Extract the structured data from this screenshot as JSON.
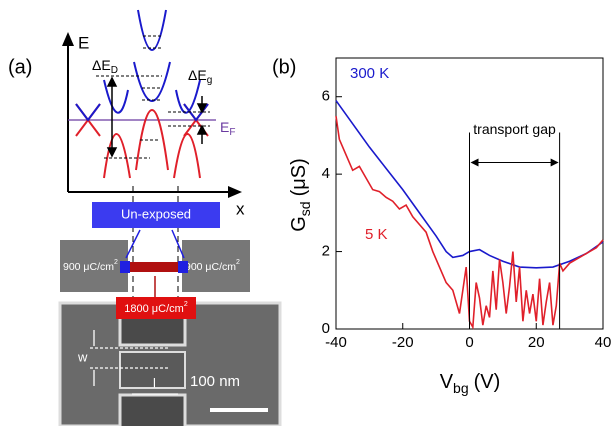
{
  "panel_a": {
    "label": "(a)",
    "e_axis": "E",
    "x_axis": "x",
    "delta_ed": {
      "base": "ΔE",
      "sub": "D"
    },
    "delta_eg": {
      "base": "ΔE",
      "sub": "g"
    },
    "fermi": {
      "base": "E",
      "sub": "F"
    },
    "unexposed": "Un-exposed",
    "dose_left": {
      "base": "900 μC/cm",
      "sup": "2"
    },
    "dose_right": {
      "base": "900 μC/cm",
      "sup": "2"
    },
    "dose_center": {
      "base": "1800 μC/cm",
      "sup": "2"
    },
    "width": "w",
    "length": "l",
    "scale": "100 nm"
  },
  "chart_data": {
    "type": "line",
    "panel_label": "(b)",
    "x_label": {
      "base": "V",
      "sub": "bg",
      "unit": "(V)"
    },
    "y_label": {
      "base": "G",
      "sub": "sd",
      "unit": "(μS)"
    },
    "xlim": [
      -40,
      40
    ],
    "xticks": [
      -40,
      -20,
      0,
      20,
      40
    ],
    "ylim": [
      0,
      7
    ],
    "yticks": [
      0,
      2,
      4,
      6
    ],
    "gap": {
      "label": "transport gap",
      "range": [
        0,
        27
      ],
      "level": 4.3
    },
    "series": [
      {
        "name": "300 K",
        "color": "#1a1acc",
        "x": [
          -40,
          -35,
          -30,
          -25,
          -20,
          -15,
          -10,
          -7,
          -5,
          -2,
          0,
          3,
          6,
          10,
          15,
          20,
          25,
          30,
          35,
          40
        ],
        "values": [
          5.9,
          5.3,
          4.7,
          4.15,
          3.6,
          3.0,
          2.4,
          2.0,
          1.85,
          1.9,
          2.0,
          2.05,
          1.9,
          1.75,
          1.6,
          1.58,
          1.6,
          1.75,
          1.95,
          2.25
        ]
      },
      {
        "name": "5 K",
        "color": "#e0202a",
        "x": [
          -40,
          -39,
          -37,
          -35,
          -33,
          -31,
          -29,
          -27,
          -25,
          -23,
          -21,
          -19,
          -17,
          -15,
          -13,
          -11,
          -9,
          -7,
          -5,
          -3,
          -1,
          0,
          1,
          2,
          3,
          4,
          5,
          6,
          7,
          8,
          9,
          10,
          11,
          12,
          13,
          14,
          15,
          16,
          17,
          18,
          19,
          20,
          21,
          22,
          23,
          24,
          25,
          26,
          27,
          28,
          29,
          30,
          32,
          34,
          36,
          38,
          40
        ],
        "values": [
          5.5,
          4.9,
          4.5,
          4.1,
          4.2,
          3.9,
          3.6,
          3.55,
          3.4,
          3.3,
          3.1,
          3.2,
          2.9,
          2.7,
          2.5,
          2.0,
          1.6,
          1.2,
          1.0,
          0.4,
          1.6,
          0.2,
          0.05,
          1.2,
          0.8,
          0.1,
          0.6,
          0.3,
          1.5,
          0.5,
          1.8,
          1.2,
          0.4,
          1.1,
          2.0,
          0.7,
          1.6,
          0.2,
          1.0,
          0.4,
          0.9,
          0.2,
          1.3,
          0.1,
          0.7,
          1.2,
          0.1,
          0.6,
          1.7,
          1.5,
          1.6,
          1.7,
          1.8,
          1.9,
          2.0,
          2.1,
          2.3
        ]
      }
    ]
  }
}
